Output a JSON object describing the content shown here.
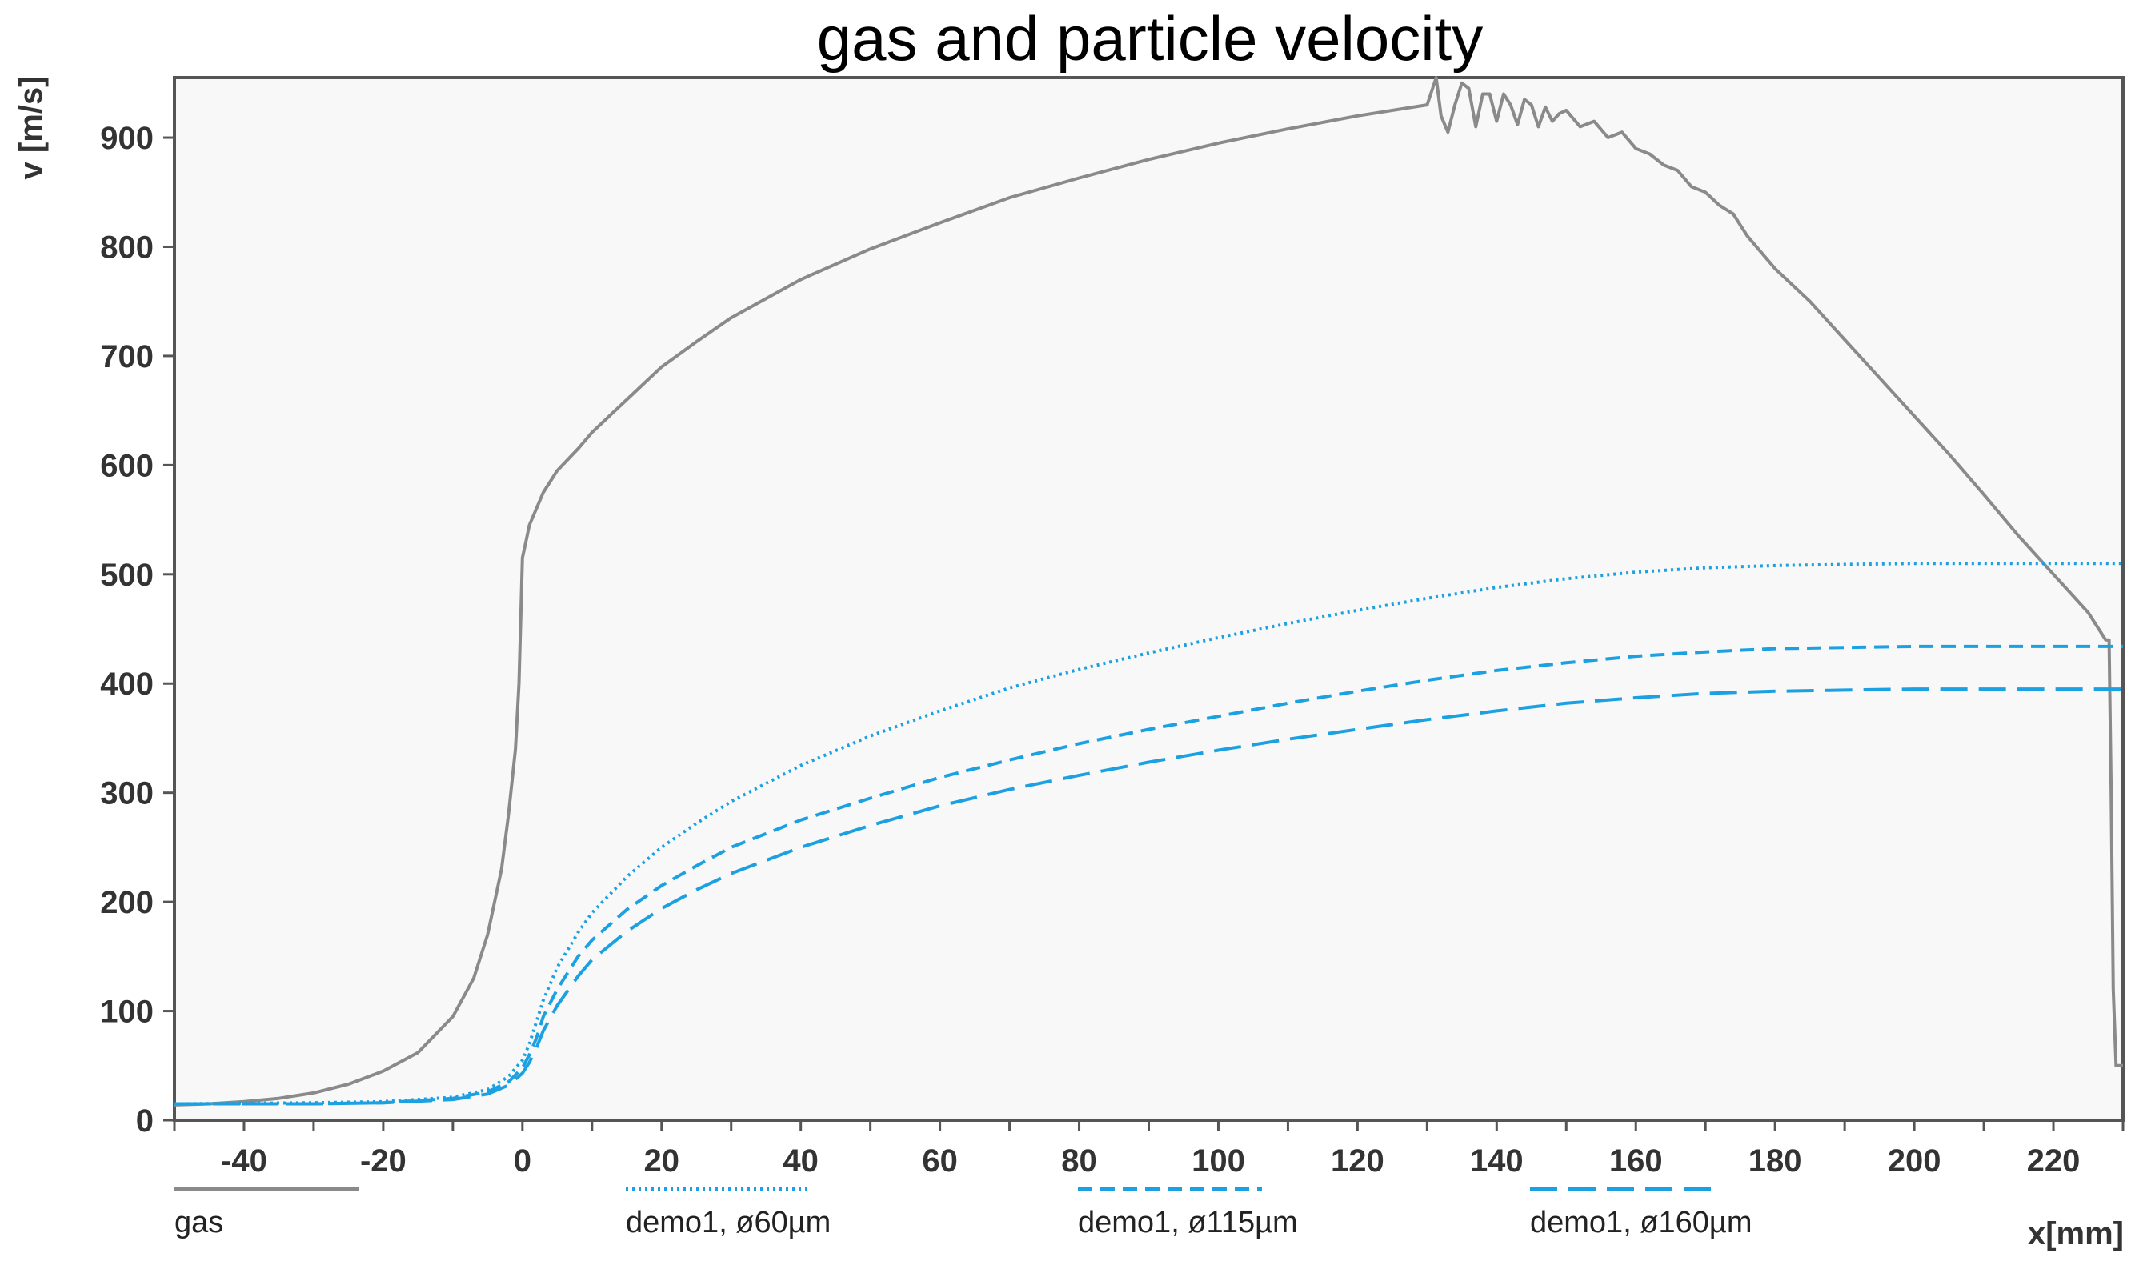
{
  "chart_data": {
    "type": "line",
    "title": "gas and particle velocity",
    "xlabel": "x[mm]",
    "ylabel": "v [m/s]",
    "xlim": [
      -50,
      230
    ],
    "ylim": [
      0,
      955
    ],
    "xticks": [
      -40,
      -20,
      0,
      20,
      40,
      60,
      80,
      100,
      120,
      140,
      160,
      180,
      200,
      220
    ],
    "yticks": [
      0,
      100,
      200,
      300,
      400,
      500,
      600,
      700,
      800,
      900
    ],
    "grid": false,
    "legend_position": "bottom",
    "series": [
      {
        "name": "gas",
        "color": "#8a8a8a",
        "style": "solid",
        "x": [
          -50,
          -45,
          -40,
          -35,
          -30,
          -25,
          -20,
          -15,
          -10,
          -7,
          -5,
          -3,
          -2,
          -1,
          -0.5,
          0,
          0.5,
          1,
          2,
          3,
          5,
          8,
          10,
          15,
          20,
          25,
          30,
          40,
          50,
          60,
          70,
          80,
          90,
          100,
          110,
          120,
          130,
          131.3,
          132,
          133,
          134,
          135,
          136,
          137,
          138,
          139,
          140,
          141,
          142,
          143,
          144,
          145,
          146,
          147,
          148,
          149,
          150,
          152,
          154,
          156,
          158,
          160,
          162,
          164,
          166,
          168,
          170,
          172,
          174,
          176,
          178,
          180,
          185,
          190,
          195,
          200,
          205,
          210,
          215,
          220,
          225,
          227.5,
          228,
          228.3,
          228.6,
          229,
          230
        ],
        "y": [
          14,
          15,
          17,
          20,
          25,
          33,
          45,
          62,
          95,
          130,
          170,
          230,
          280,
          340,
          400,
          515,
          530,
          545,
          560,
          575,
          595,
          615,
          630,
          660,
          690,
          713,
          735,
          770,
          798,
          822,
          845,
          863,
          880,
          895,
          908,
          920,
          930,
          955,
          920,
          905,
          930,
          950,
          945,
          910,
          940,
          940,
          915,
          940,
          930,
          912,
          935,
          930,
          910,
          928,
          915,
          922,
          925,
          910,
          915,
          900,
          905,
          890,
          885,
          875,
          870,
          855,
          850,
          838,
          830,
          810,
          795,
          780,
          750,
          715,
          680,
          645,
          610,
          573,
          535,
          500,
          465,
          440,
          440,
          300,
          120,
          50,
          50
        ]
      },
      {
        "name": "demo1, ø60µm",
        "color": "#1ba1e2",
        "style": "dotted",
        "x": [
          -50,
          -30,
          -20,
          -10,
          -5,
          -2,
          0,
          1,
          2,
          3,
          5,
          8,
          10,
          15,
          20,
          25,
          30,
          40,
          50,
          60,
          70,
          80,
          90,
          100,
          110,
          120,
          130,
          140,
          150,
          160,
          170,
          180,
          190,
          200,
          210,
          220,
          230
        ],
        "y": [
          15,
          16,
          17,
          21,
          28,
          40,
          55,
          70,
          90,
          110,
          140,
          172,
          190,
          223,
          250,
          272,
          292,
          325,
          352,
          375,
          396,
          413,
          428,
          442,
          455,
          467,
          478,
          488,
          496,
          502,
          506,
          508,
          509,
          510,
          510,
          510,
          510
        ]
      },
      {
        "name": "demo1, ø115µm",
        "color": "#1ba1e2",
        "style": "dashed",
        "x": [
          -50,
          -30,
          -20,
          -10,
          -5,
          -2,
          0,
          1,
          2,
          3,
          5,
          8,
          10,
          15,
          20,
          25,
          30,
          40,
          50,
          60,
          70,
          80,
          90,
          100,
          110,
          120,
          130,
          140,
          150,
          160,
          170,
          180,
          190,
          200,
          210,
          220,
          230
        ],
        "y": [
          15,
          15,
          16,
          20,
          26,
          35,
          48,
          60,
          75,
          95,
          120,
          150,
          165,
          193,
          215,
          233,
          250,
          275,
          295,
          314,
          330,
          345,
          358,
          370,
          382,
          393,
          403,
          412,
          419,
          425,
          429,
          432,
          433,
          434,
          434,
          434,
          434
        ]
      },
      {
        "name": "demo1, ø160µm",
        "color": "#1ba1e2",
        "style": "longdash",
        "x": [
          -50,
          -30,
          -20,
          -10,
          -5,
          -2,
          0,
          1,
          2,
          3,
          5,
          8,
          10,
          15,
          20,
          25,
          30,
          40,
          50,
          60,
          70,
          80,
          90,
          100,
          110,
          120,
          130,
          140,
          150,
          160,
          170,
          180,
          190,
          200,
          210,
          220,
          230
        ],
        "y": [
          15,
          15,
          16,
          19,
          24,
          32,
          43,
          53,
          66,
          82,
          105,
          132,
          147,
          173,
          194,
          211,
          226,
          250,
          270,
          288,
          303,
          316,
          328,
          339,
          349,
          358,
          367,
          375,
          382,
          387,
          391,
          393,
          394,
          395,
          395,
          395,
          395
        ]
      }
    ]
  }
}
